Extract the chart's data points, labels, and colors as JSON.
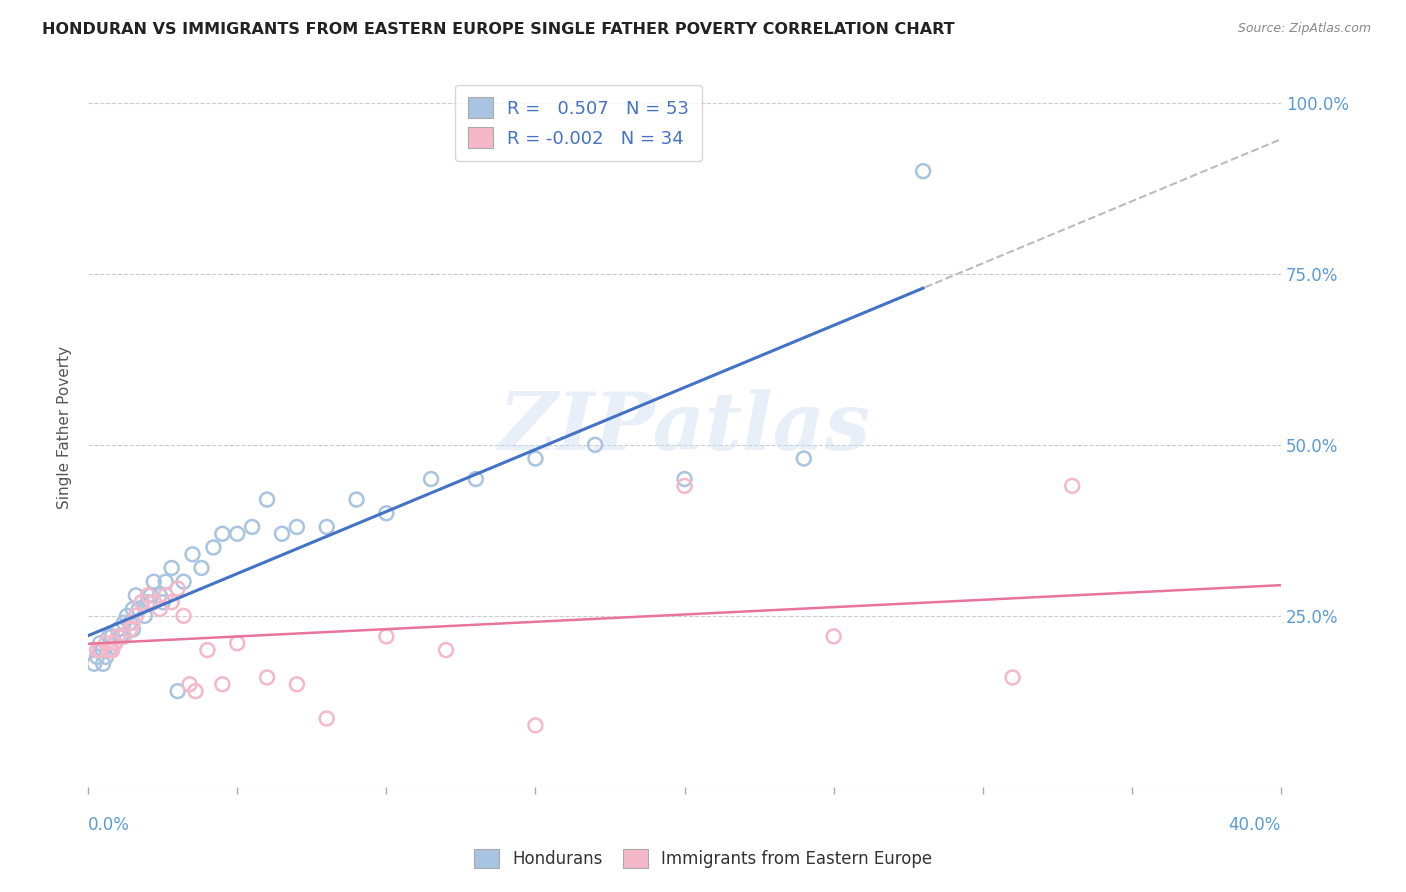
{
  "title": "HONDURAN VS IMMIGRANTS FROM EASTERN EUROPE SINGLE FATHER POVERTY CORRELATION CHART",
  "source": "Source: ZipAtlas.com",
  "ylabel": "Single Father Poverty",
  "yticks": [
    0.0,
    0.25,
    0.5,
    0.75,
    1.0
  ],
  "ytick_labels": [
    "",
    "25.0%",
    "50.0%",
    "75.0%",
    "100.0%"
  ],
  "xlim": [
    0.0,
    0.4
  ],
  "ylim": [
    0.0,
    1.05
  ],
  "honduran_color": "#a8c4e0",
  "eastern_europe_color": "#f4b8c8",
  "honduran_R": 0.507,
  "honduran_N": 53,
  "eastern_europe_R": -0.002,
  "eastern_europe_N": 34,
  "legend_label_1": "Hondurans",
  "legend_label_2": "Immigrants from Eastern Europe",
  "watermark_zip": "ZIP",
  "watermark_atlas": "atlas",
  "honduran_x": [
    0.002,
    0.003,
    0.004,
    0.004,
    0.005,
    0.005,
    0.006,
    0.007,
    0.007,
    0.008,
    0.008,
    0.009,
    0.01,
    0.01,
    0.011,
    0.012,
    0.012,
    0.013,
    0.014,
    0.015,
    0.015,
    0.016,
    0.017,
    0.018,
    0.019,
    0.02,
    0.021,
    0.022,
    0.024,
    0.025,
    0.026,
    0.028,
    0.03,
    0.032,
    0.035,
    0.038,
    0.042,
    0.045,
    0.05,
    0.055,
    0.06,
    0.065,
    0.07,
    0.08,
    0.09,
    0.1,
    0.115,
    0.13,
    0.15,
    0.17,
    0.2,
    0.24,
    0.28
  ],
  "honduran_y": [
    0.18,
    0.19,
    0.2,
    0.21,
    0.18,
    0.2,
    0.19,
    0.22,
    0.2,
    0.22,
    0.2,
    0.21,
    0.22,
    0.23,
    0.22,
    0.24,
    0.22,
    0.25,
    0.24,
    0.26,
    0.23,
    0.28,
    0.26,
    0.27,
    0.25,
    0.27,
    0.28,
    0.3,
    0.28,
    0.27,
    0.3,
    0.32,
    0.14,
    0.3,
    0.34,
    0.32,
    0.35,
    0.37,
    0.37,
    0.38,
    0.42,
    0.37,
    0.38,
    0.38,
    0.42,
    0.4,
    0.45,
    0.45,
    0.48,
    0.5,
    0.45,
    0.48,
    0.9
  ],
  "eastern_europe_x": [
    0.003,
    0.004,
    0.006,
    0.007,
    0.008,
    0.009,
    0.01,
    0.012,
    0.014,
    0.015,
    0.016,
    0.018,
    0.02,
    0.022,
    0.024,
    0.026,
    0.028,
    0.03,
    0.032,
    0.034,
    0.036,
    0.04,
    0.045,
    0.05,
    0.06,
    0.07,
    0.08,
    0.1,
    0.12,
    0.15,
    0.2,
    0.25,
    0.31,
    0.33
  ],
  "eastern_europe_y": [
    0.2,
    0.2,
    0.21,
    0.2,
    0.2,
    0.21,
    0.22,
    0.22,
    0.23,
    0.24,
    0.25,
    0.27,
    0.28,
    0.27,
    0.26,
    0.28,
    0.27,
    0.29,
    0.25,
    0.15,
    0.14,
    0.2,
    0.15,
    0.21,
    0.16,
    0.15,
    0.1,
    0.22,
    0.2,
    0.09,
    0.44,
    0.22,
    0.16,
    0.44
  ],
  "blue_line_color": "#4472c4",
  "pink_line_color": "#e8749a",
  "dashed_line_color": "#bbbbbb",
  "grid_color": "#cccccc",
  "title_color": "#222222",
  "right_ytick_color": "#5b9bd5",
  "legend_text_color": "#4472c4",
  "background_color": "#ffffff"
}
